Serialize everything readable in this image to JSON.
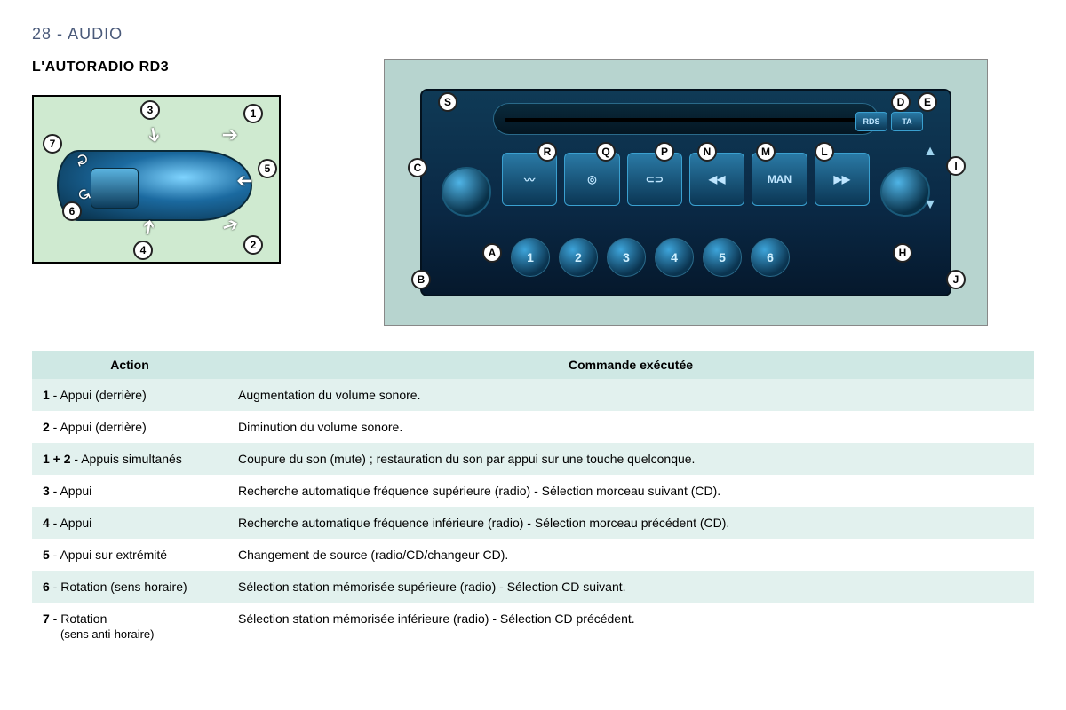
{
  "header": {
    "page_number": "28",
    "section": "AUDIO"
  },
  "title": "L'AUTORADIO RD3",
  "stalk": {
    "callouts": [
      "1",
      "2",
      "3",
      "4",
      "5",
      "6",
      "7"
    ]
  },
  "radio": {
    "mid_buttons": [
      "〰",
      "◎",
      "⊂⊃",
      "◀◀",
      "MAN",
      "▶▶"
    ],
    "presets": [
      "1",
      "2",
      "3",
      "4",
      "5",
      "6"
    ],
    "labels": [
      "A",
      "B",
      "C",
      "D",
      "E",
      "H",
      "I",
      "J",
      "L",
      "M",
      "N",
      "P",
      "Q",
      "R",
      "S"
    ],
    "rds": "RDS",
    "ta": "TA"
  },
  "table": {
    "headers": {
      "action": "Action",
      "command": "Commande exécutée"
    },
    "rows": [
      {
        "num": "1",
        "action": " - Appui (derrière)",
        "command": "Augmentation du volume sonore."
      },
      {
        "num": "2",
        "action": " - Appui (derrière)",
        "command": "Diminution du volume sonore."
      },
      {
        "num": "1 + 2",
        "action": " - Appuis simultanés",
        "command": "Coupure du son (mute) ; restauration du son par appui sur une touche quelconque."
      },
      {
        "num": "3",
        "action": " - Appui",
        "command": "Recherche automatique fréquence supérieure (radio) - Sélection morceau suivant (CD)."
      },
      {
        "num": "4",
        "action": " - Appui",
        "command": "Recherche automatique fréquence inférieure (radio) - Sélection morceau précédent (CD)."
      },
      {
        "num": "5",
        "action": " - Appui sur extrémité",
        "command": "Changement de source (radio/CD/changeur CD)."
      },
      {
        "num": "6",
        "action": " - Rotation (sens horaire)",
        "command": "Sélection station mémorisée supérieure (radio) - Sélection CD suivant."
      },
      {
        "num": "7",
        "action": " - Rotation",
        "sub": "(sens anti-horaire)",
        "command": "Sélection station mémorisée inférieure (radio) - Sélection CD précédent."
      }
    ]
  },
  "colors": {
    "header_text": "#4a5a7a",
    "table_header_bg": "#cfe8e4",
    "row_shaded_bg": "#e2f1ee",
    "stalk_bg": "#cfead0",
    "radio_bg": "#b7d4cf"
  }
}
